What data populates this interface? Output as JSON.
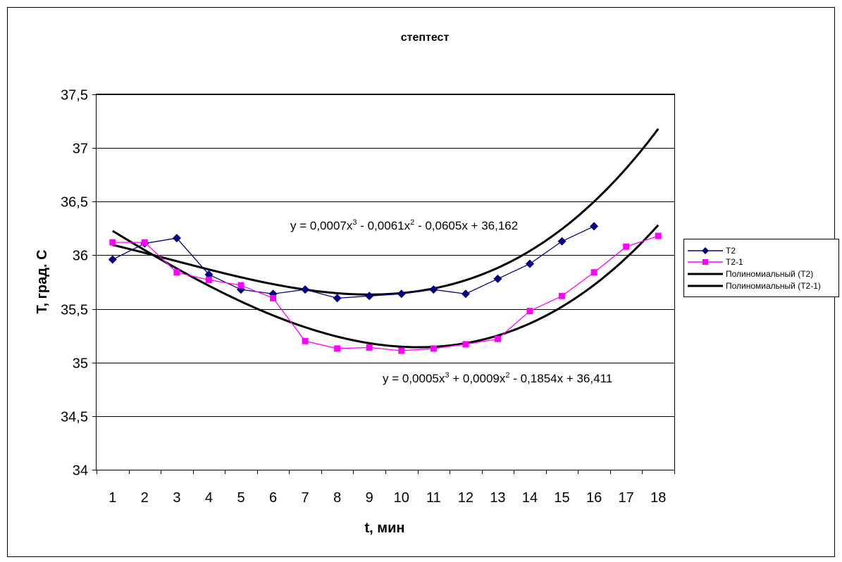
{
  "chart_data": {
    "type": "line",
    "title": "стептест",
    "xlabel": "t, мин",
    "ylabel": "T, град. С",
    "categories": [
      "1",
      "2",
      "3",
      "4",
      "5",
      "6",
      "7",
      "8",
      "9",
      "10",
      "11",
      "12",
      "13",
      "14",
      "15",
      "16",
      "17",
      "18"
    ],
    "ylim": [
      34,
      37.5
    ],
    "yticks": [
      "34",
      "34,5",
      "35",
      "35,5",
      "36",
      "36,5",
      "37",
      "37,5"
    ],
    "ytick_values": [
      34,
      34.5,
      35,
      35.5,
      36,
      36.5,
      37,
      37.5
    ],
    "grid": "horizontal",
    "legend_position": "right",
    "series": [
      {
        "name": "T2",
        "marker": "diamond",
        "color": "#000080",
        "values": [
          35.96,
          36.11,
          36.16,
          35.82,
          35.68,
          35.64,
          35.68,
          35.6,
          35.62,
          35.64,
          35.68,
          35.64,
          35.78,
          35.92,
          36.13,
          36.27,
          null,
          null
        ]
      },
      {
        "name": "T2-1",
        "marker": "square",
        "color": "#FF00FF",
        "values": [
          36.12,
          36.12,
          35.84,
          35.77,
          35.72,
          35.6,
          35.2,
          35.13,
          35.14,
          35.11,
          35.13,
          35.17,
          35.22,
          35.48,
          35.62,
          35.84,
          36.08,
          36.18
        ]
      }
    ],
    "trendlines": [
      {
        "name": "Полиномиальный (T2)",
        "color": "#000000",
        "coefficients": [
          0.0007,
          -0.0061,
          -0.0605,
          36.162
        ],
        "x_range": [
          1,
          18
        ],
        "equation": {
          "prefix": "y = 0,0007x",
          "exp1": "3",
          "mid": " - 0,0061x",
          "exp2": "2",
          "suffix": " - 0,0605x + 36,162"
        }
      },
      {
        "name": "Полиномиальный (T2-1)",
        "color": "#000000",
        "coefficients": [
          0.0005,
          0.0009,
          -0.1854,
          36.411
        ],
        "x_range": [
          1,
          18
        ],
        "equation": {
          "prefix": "y = 0,0005x",
          "exp1": "3",
          "mid": " + 0,0009x",
          "exp2": "2",
          "suffix": " - 0,1854x + 36,411"
        }
      }
    ]
  }
}
